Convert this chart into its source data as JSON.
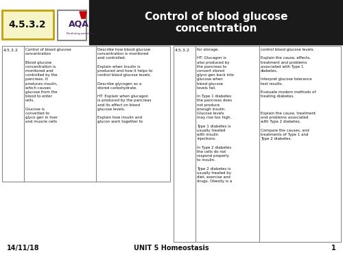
{
  "title": "Control of blood glucose\nconcentration",
  "header_bg": "#1a1a1a",
  "header_text_color": "#ffffff",
  "badge_text": "4.5.3.2",
  "badge_bg": "#f5f5c8",
  "badge_border": "#c8a000",
  "footer_date": "14/11/18",
  "footer_unit": "UNIT 5 Homeostasis",
  "footer_page": "1",
  "table1_col1": "4.5.3.2",
  "table1_col2": "Control of blood glucose\nconcentration\n\nBlood glucose\nconcentration is\nmonitored and\ncontrolled by the\npancreas. It\nproduces insulin,\nwhich causes\nglucose from the\nblood to enter\ncells.\n\nGlucose is\nconverted to\nglyco gen in liver\nand muscle cells",
  "table1_col3": "Describe how blood glucose\nconcentration is monitored\nand controlled.\n\nExplain when insulin is\nproduced and how it helps to\ncontrol blood glucose levels.\n\nDescribe glycogen as a\nstored carbohydrate.\n\nHT: Explain when glucagon\nis produced by the pancreas\nand its effect on blood\nglucose levels.\n\nExplain how insulin and\nglucon work together to",
  "table2_col1": "4.5.3.2",
  "table2_col2": "for storage.\n\nHT: Glucagon is\nalso produced by\nthe pancreas to\nconvert stored\nglyco gen back into\nglucose when\nblood glucose\nlevels fall.\n\nIn Type 1 diabetes\nthe pancreas does\nnot produce\nenough insulin.\nGlucose levels\nmay rise too high.\n\nType 1 diabetes is\nusually treated\nwith insulin\ninjections.\n\nIn Type 2 diabetes\nthe cells do not\nrespond properly\nto insulin.\n\nType 2 diabetes is\nusually treated by\ndiet, exercise and\ndrugs. Obesity is a",
  "table2_col3": "control blood glucose levels.\n\nExplain the cause, effects,\ntreatment and problems\nassociated with Type 1\ndiabetes.\n\nInterpret glucose tolerance\ntest results.\n\nEvaluate modern methods of\ntreating diabetes.\n\n\n\nExplain the cause, treatment\nand problems associated\nwith Type 2 diabetes.\n\nCompare the causes, and\ntreatments of Type 1 and\nType 2 diabetes.",
  "bg_color": "#ffffff",
  "table_border_color": "#888888",
  "text_color": "#111111",
  "aqa_purple": "#3d1a6e",
  "aqa_red": "#cc0000"
}
